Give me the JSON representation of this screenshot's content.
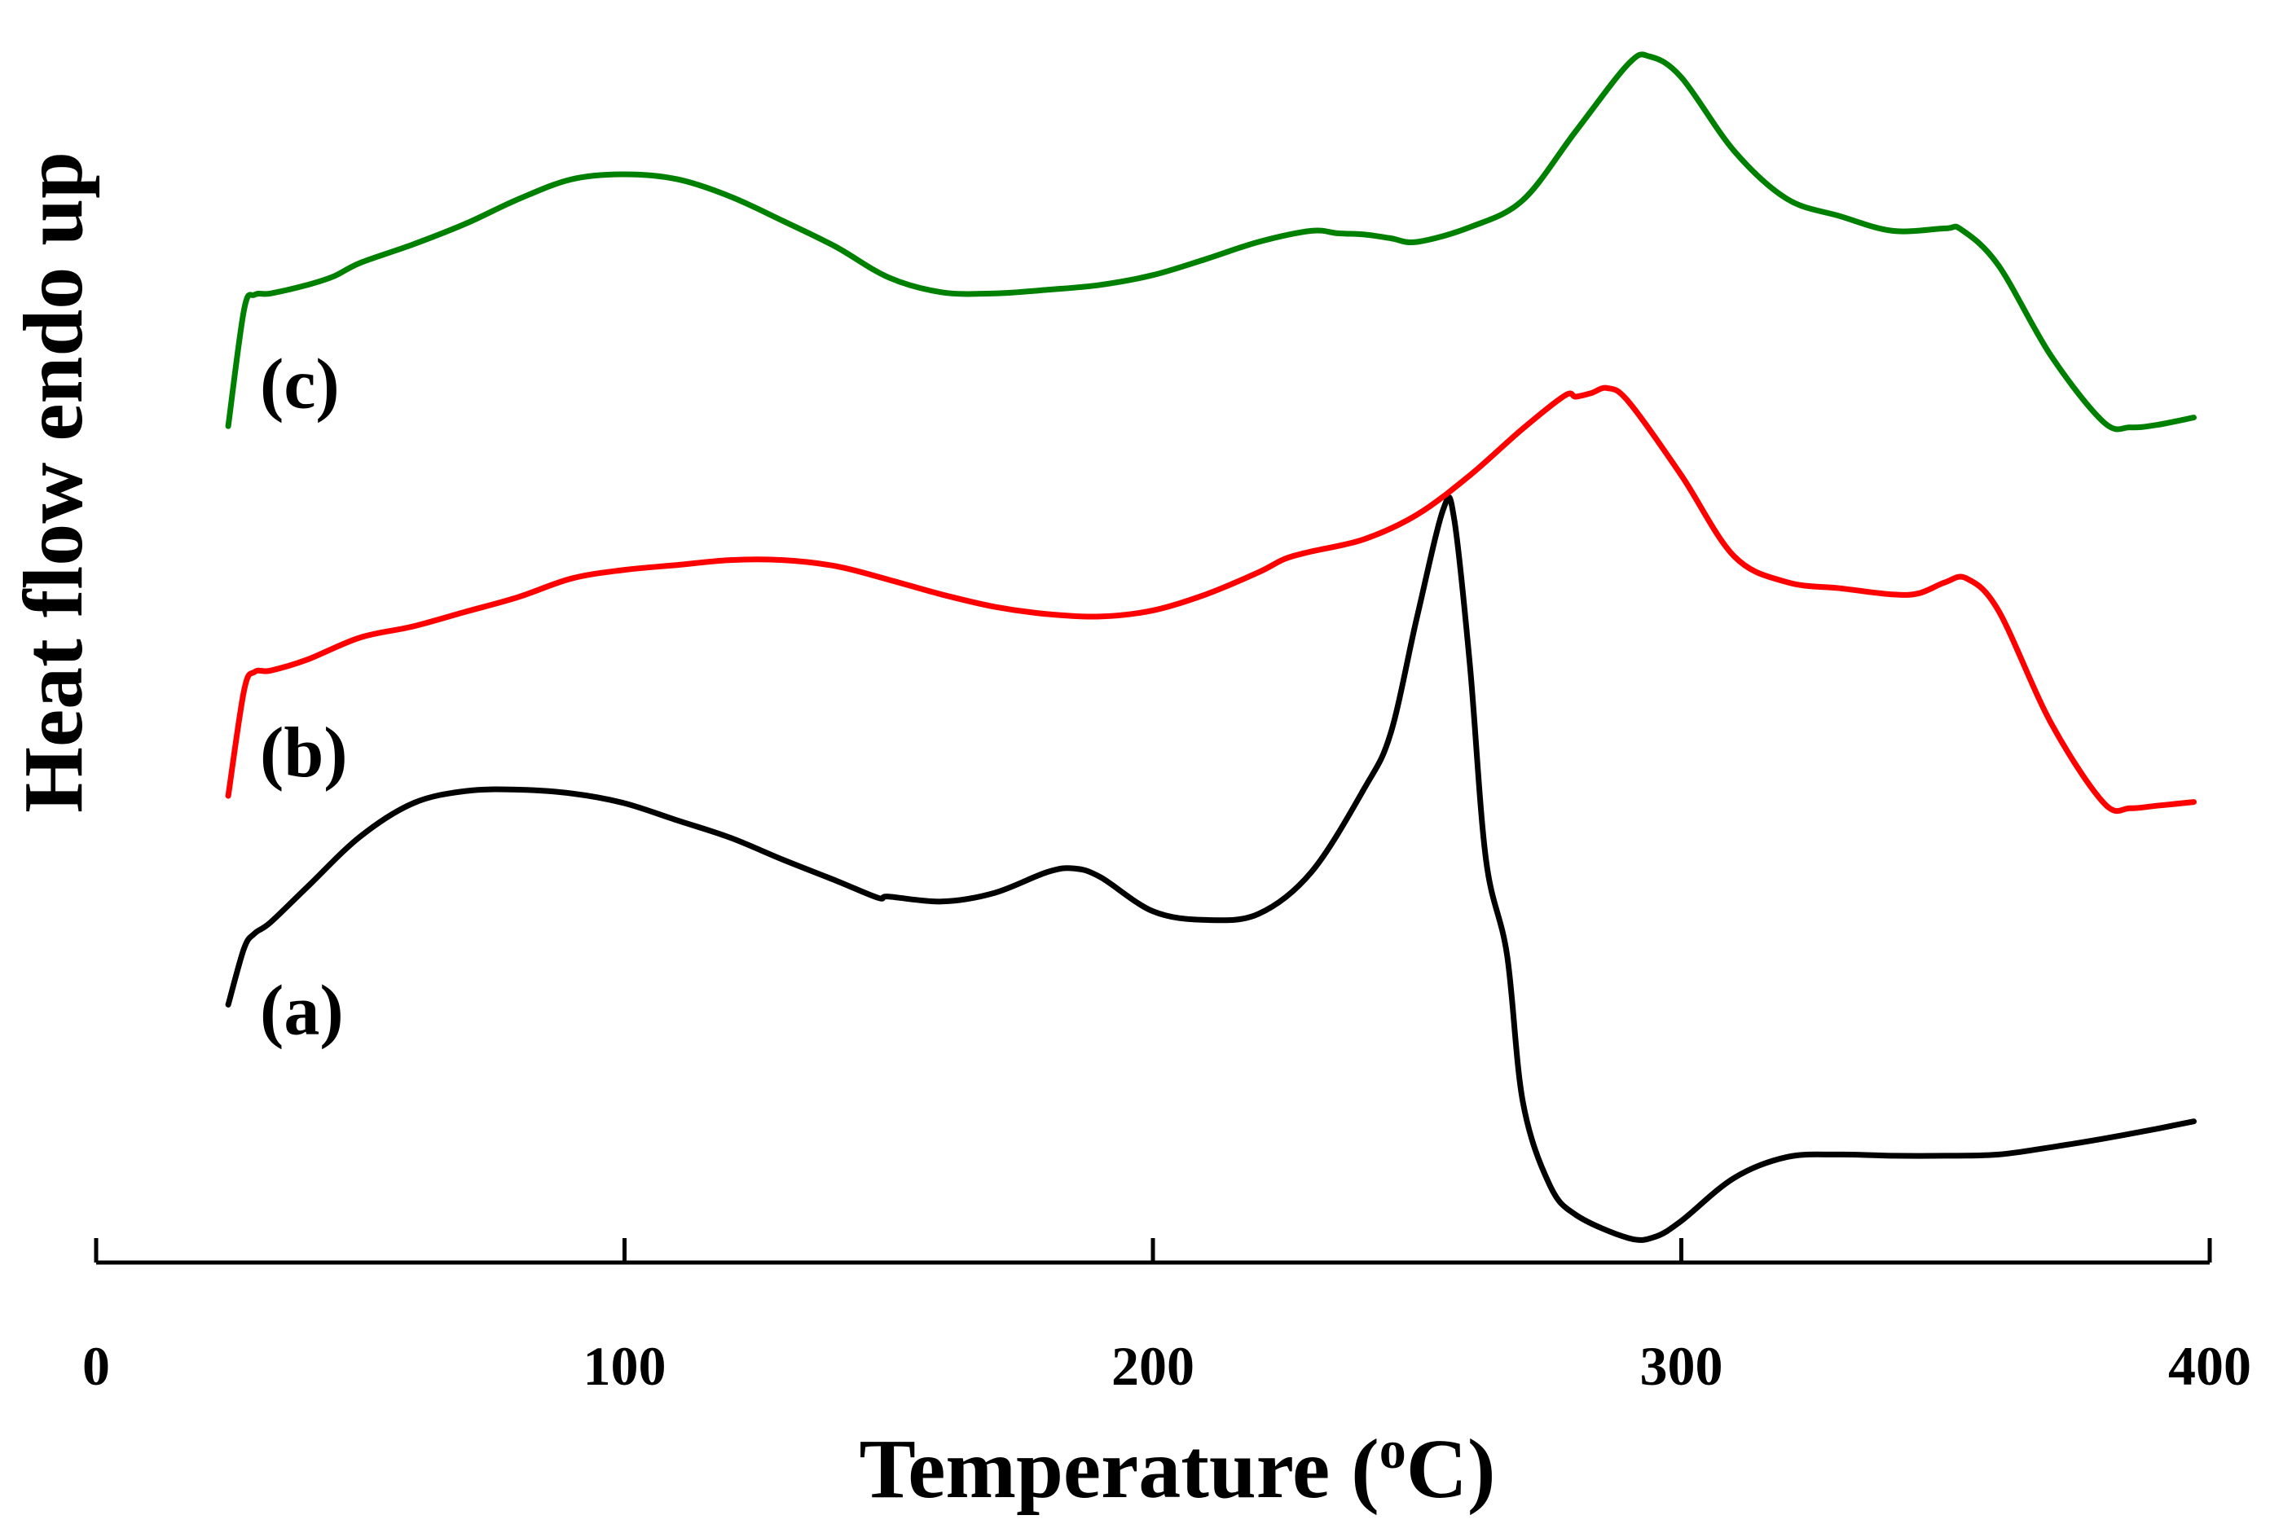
{
  "chart_data": {
    "type": "line",
    "title": "",
    "xlabel": "Temperature",
    "xlabel_unit_prefix": "o",
    "xlabel_unit": "C",
    "ylabel": "Heat flow endo up",
    "xlim": [
      0,
      400
    ],
    "ylim": [
      0,
      100
    ],
    "xticks": [
      0,
      100,
      200,
      300,
      400
    ],
    "xtick_labels": [
      "0",
      "100",
      "200",
      "300",
      "400"
    ],
    "yaxis_visible": false,
    "grid": false,
    "legend": "none",
    "series": [
      {
        "name": "(a)",
        "label": "(a)",
        "color": "#000000",
        "label_anchor": [
          31,
          17
        ],
        "x": [
          25,
          28,
          30,
          33,
          40,
          50,
          60,
          70,
          80,
          90,
          100,
          110,
          120,
          130,
          140,
          148,
          150,
          160,
          170,
          180,
          185,
          190,
          200,
          210,
          220,
          230,
          240,
          245,
          250,
          255,
          257,
          260,
          263,
          267,
          270,
          275,
          280,
          290,
          295,
          300,
          310,
          320,
          330,
          340,
          350,
          360,
          370,
          380,
          390,
          397
        ],
        "y": [
          19.4,
          24.0,
          25.2,
          26.1,
          29.0,
          33.1,
          35.8,
          36.8,
          36.9,
          36.6,
          35.8,
          34.4,
          33.0,
          31.2,
          29.5,
          28.1,
          28.2,
          27.8,
          28.5,
          30.2,
          30.5,
          29.8,
          27.0,
          26.3,
          26.8,
          30.2,
          37.0,
          41.5,
          51.0,
          59.8,
          59.0,
          47.0,
          31.3,
          23.5,
          11.5,
          4.8,
          2.3,
          0.4,
          0.5,
          1.8,
          5.3,
          7.0,
          7.2,
          7.1,
          7.1,
          7.2,
          7.8,
          8.5,
          9.3,
          9.9
        ]
      },
      {
        "name": "(b)",
        "label": "(b)",
        "color": "#ff0000",
        "label_anchor": [
          31,
          38
        ],
        "x": [
          25,
          28,
          30,
          33,
          40,
          50,
          60,
          70,
          80,
          90,
          100,
          110,
          120,
          130,
          140,
          150,
          160,
          170,
          180,
          190,
          200,
          210,
          220,
          225,
          230,
          240,
          250,
          260,
          270,
          278,
          280,
          283,
          286,
          290,
          300,
          310,
          320,
          330,
          340,
          345,
          350,
          354,
          360,
          370,
          380,
          385,
          390,
          397
        ],
        "y": [
          36.4,
          45.0,
          46.5,
          46.6,
          47.5,
          49.3,
          50.2,
          51.4,
          52.6,
          54.1,
          54.8,
          55.2,
          55.6,
          55.6,
          55.1,
          54.0,
          52.8,
          51.8,
          51.2,
          51.0,
          51.5,
          52.8,
          54.6,
          55.7,
          56.3,
          57.3,
          59.3,
          62.5,
          66.3,
          69.0,
          68.9,
          69.2,
          69.6,
          68.5,
          62.5,
          55.9,
          53.8,
          53.3,
          52.8,
          52.9,
          53.8,
          54.1,
          51.5,
          42.3,
          35.8,
          35.4,
          35.6,
          35.9
        ]
      },
      {
        "name": "(c)",
        "label": "(c)",
        "color": "#008000",
        "label_anchor": [
          31,
          68
        ],
        "x": [
          25,
          28,
          30,
          33,
          40,
          45,
          50,
          60,
          70,
          80,
          90,
          100,
          110,
          120,
          130,
          140,
          150,
          160,
          170,
          180,
          190,
          200,
          210,
          220,
          230,
          235,
          240,
          245,
          250,
          260,
          270,
          280,
          290,
          294,
          300,
          310,
          320,
          330,
          340,
          350,
          353,
          360,
          370,
          380,
          385,
          390,
          397
        ],
        "y": [
          66.5,
          76.0,
          77.2,
          77.3,
          78.0,
          78.7,
          79.8,
          81.3,
          83.0,
          85.0,
          86.6,
          87.0,
          86.6,
          85.2,
          83.2,
          81.1,
          78.6,
          77.4,
          77.3,
          77.6,
          78.0,
          78.8,
          80.1,
          81.5,
          82.4,
          82.2,
          82.1,
          81.8,
          81.5,
          82.7,
          84.9,
          90.5,
          96.0,
          96.6,
          94.9,
          88.9,
          85.0,
          83.6,
          82.4,
          82.6,
          82.5,
          79.6,
          72.2,
          66.8,
          66.4,
          66.6,
          67.2
        ]
      }
    ]
  }
}
